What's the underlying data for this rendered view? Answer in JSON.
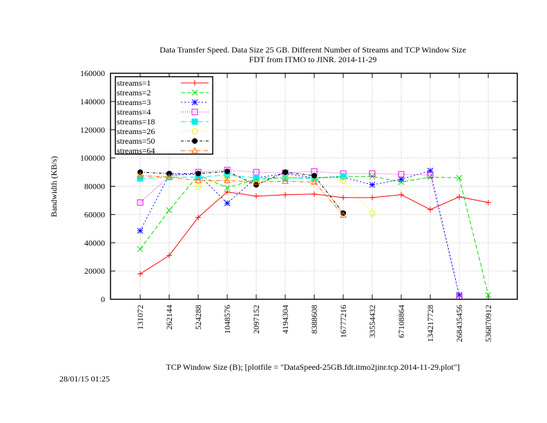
{
  "timestamp": "28/01/15 01:25",
  "chart_data": {
    "type": "line",
    "title": "Data Transfer Speed. Data Size 25 GB. Different Number of Streams and TCP Window Size",
    "subtitle": "FDT from ITMO to JINR. 2014-11-29",
    "xlabel": "TCP Window Size (B); [plotfile = \"DataSpeed-25GB.fdt.itmo2jinr.tcp.2014-11-29.plot\"]",
    "ylabel": "Bandwidth (KB/s)",
    "ylim": [
      0,
      160000
    ],
    "yticks": [
      "0",
      "20000",
      "40000",
      "60000",
      "80000",
      "100000",
      "120000",
      "140000",
      "160000"
    ],
    "categories": [
      "131072",
      "262144",
      "524288",
      "1048576",
      "2097152",
      "4194304",
      "8388608",
      "16777216",
      "33554432",
      "67108864",
      "134217728",
      "268435456",
      "536870912"
    ],
    "grid": true,
    "legend_position": "top-left",
    "series": [
      {
        "name": "streams=1",
        "color": "#ff0000",
        "dash": "",
        "marker": "plus",
        "values": [
          18000,
          31000,
          58000,
          76000,
          73000,
          74000,
          74500,
          72000,
          72000,
          74000,
          63500,
          72500,
          68500
        ]
      },
      {
        "name": "streams=2",
        "color": "#00dd00",
        "dash": "6,3",
        "marker": "cross",
        "values": [
          35500,
          63000,
          88000,
          79000,
          85000,
          86000,
          86000,
          87000,
          87000,
          83000,
          86500,
          86000,
          3000
        ]
      },
      {
        "name": "streams=3",
        "color": "#0000ff",
        "dash": "2,3",
        "marker": "star",
        "values": [
          48500,
          88000,
          88500,
          68000,
          86000,
          89000,
          86000,
          86500,
          81000,
          85000,
          91000,
          3000,
          null
        ]
      },
      {
        "name": "streams=4",
        "color": "#ee00ee",
        "dash": "1,2",
        "marker": "square",
        "values": [
          68500,
          87000,
          90000,
          91500,
          90000,
          89500,
          90500,
          89000,
          89000,
          88500,
          88000,
          2000,
          null
        ]
      },
      {
        "name": "streams=18",
        "color": "#00eeee",
        "dash": "8,4",
        "marker": "filledsquare",
        "values": [
          85500,
          86500,
          86500,
          88000,
          86000,
          86000,
          85500,
          87000,
          null,
          null,
          null,
          null,
          null
        ]
      },
      {
        "name": "streams=26",
        "color": "#eeee00",
        "dash": "1,3",
        "marker": "circle",
        "values": [
          88000,
          87000,
          79500,
          86000,
          82000,
          87000,
          86000,
          84000,
          61000,
          null,
          null,
          null,
          null
        ]
      },
      {
        "name": "streams=50",
        "color": "#000000",
        "dash": "4,2,1,2",
        "marker": "filledcircle",
        "values": [
          90000,
          89000,
          89000,
          90500,
          81000,
          90000,
          87500,
          61000,
          null,
          null,
          null,
          null,
          null
        ]
      },
      {
        "name": "streams=64",
        "color": "#ff6600",
        "dash": "6,2,1,2",
        "marker": "triangle",
        "values": [
          87500,
          86500,
          84000,
          84000,
          83000,
          83500,
          83000,
          59500,
          null,
          null,
          null,
          null,
          null
        ]
      }
    ]
  }
}
